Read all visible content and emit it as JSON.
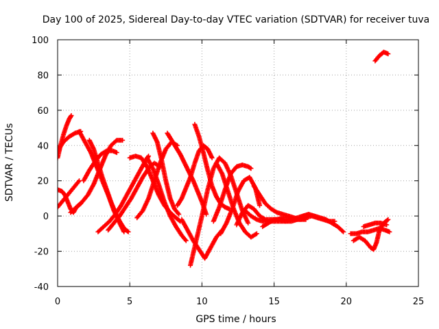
{
  "chart_data": {
    "type": "scatter",
    "title": "Day 100 of 2025, Sidereal Day-to-day VTEC variation (SDTVAR) for receiver tuva",
    "xlabel": "GPS time / hours",
    "ylabel": "SDTVAR / TECUs",
    "xlim": [
      0,
      25
    ],
    "ylim": [
      -40,
      100
    ],
    "xticks": [
      0,
      5,
      10,
      15,
      20,
      25
    ],
    "yticks": [
      -40,
      -20,
      0,
      20,
      40,
      60,
      80,
      100
    ],
    "grid": true,
    "marker": "+",
    "color": "#ff0000",
    "series": [
      {
        "name": "track-1",
        "x": [
          0.0,
          0.2,
          0.4,
          0.6,
          0.8,
          0.95
        ],
        "y": [
          33,
          40,
          46,
          51,
          55,
          57
        ]
      },
      {
        "name": "track-2",
        "x": [
          0.0,
          0.4,
          0.8,
          1.2,
          1.6
        ],
        "y": [
          37,
          42,
          45,
          47,
          48
        ]
      },
      {
        "name": "track-3",
        "x": [
          0.0,
          0.3,
          0.6,
          0.9,
          1.2,
          1.5
        ],
        "y": [
          5,
          8,
          11,
          14,
          17,
          20
        ]
      },
      {
        "name": "track-4",
        "x": [
          0.0,
          0.3,
          0.5,
          0.7,
          0.9,
          1.1,
          1.3,
          1.6
        ],
        "y": [
          15,
          14,
          12,
          8,
          4,
          2,
          5,
          7
        ]
      },
      {
        "name": "track-5",
        "x": [
          0.9,
          1.3,
          1.7,
          2.1,
          2.5,
          2.9,
          3.3,
          3.7,
          4.1,
          4.5
        ],
        "y": [
          2,
          5,
          8,
          12,
          18,
          26,
          34,
          40,
          43,
          43
        ]
      },
      {
        "name": "track-6",
        "x": [
          1.5,
          1.9,
          2.3,
          2.7,
          3.1,
          3.5,
          3.9,
          4.3,
          4.6
        ],
        "y": [
          48,
          42,
          36,
          28,
          20,
          12,
          3,
          -4,
          -9
        ]
      },
      {
        "name": "track-7",
        "x": [
          1.8,
          2.2,
          2.6,
          3.0,
          3.4,
          3.8,
          4.1
        ],
        "y": [
          20,
          26,
          31,
          35,
          37,
          37,
          36
        ]
      },
      {
        "name": "track-8",
        "x": [
          2.2,
          2.5,
          2.8,
          3.1,
          3.4,
          3.7,
          4.0,
          4.3,
          4.6,
          4.9
        ],
        "y": [
          43,
          38,
          30,
          22,
          15,
          8,
          2,
          -3,
          -7,
          -9
        ]
      },
      {
        "name": "track-9",
        "x": [
          2.8,
          3.2,
          3.6,
          4.0,
          4.4,
          4.8,
          5.2,
          5.6,
          6.0,
          6.3
        ],
        "y": [
          -9,
          -6,
          -3,
          1,
          6,
          12,
          18,
          24,
          30,
          34
        ]
      },
      {
        "name": "track-10",
        "x": [
          3.5,
          3.9,
          4.3,
          4.7,
          5.1,
          5.5,
          5.9,
          6.3,
          6.7,
          7.1
        ],
        "y": [
          -8,
          -4,
          0,
          5,
          10,
          16,
          22,
          27,
          30,
          28
        ]
      },
      {
        "name": "track-11",
        "x": [
          5.0,
          5.4,
          5.8,
          6.2,
          6.6,
          7.0,
          7.4,
          7.8,
          8.2,
          8.5
        ],
        "y": [
          33,
          34,
          33,
          28,
          20,
          12,
          6,
          2,
          -1,
          -3
        ]
      },
      {
        "name": "track-12",
        "x": [
          6.2,
          6.6,
          7.0,
          7.4,
          7.8,
          8.2,
          8.6,
          8.9
        ],
        "y": [
          33,
          27,
          18,
          8,
          0,
          -6,
          -11,
          -14
        ]
      },
      {
        "name": "track-13",
        "x": [
          5.5,
          5.9,
          6.3,
          6.7,
          7.1,
          7.5,
          7.9,
          8.3
        ],
        "y": [
          -1,
          3,
          10,
          20,
          30,
          38,
          42,
          40
        ]
      },
      {
        "name": "track-14",
        "x": [
          6.6,
          6.9,
          7.2,
          7.5,
          7.8,
          8.1,
          8.4
        ],
        "y": [
          47,
          42,
          32,
          20,
          10,
          4,
          1
        ]
      },
      {
        "name": "track-15",
        "x": [
          7.6,
          7.9,
          8.2,
          8.5,
          8.8,
          9.1,
          9.4,
          9.7,
          10.0,
          10.3
        ],
        "y": [
          47,
          43,
          39,
          35,
          30,
          25,
          20,
          14,
          8,
          1
        ]
      },
      {
        "name": "track-16",
        "x": [
          8.3,
          8.6,
          8.9,
          9.2,
          9.5,
          9.8,
          10.1,
          10.4,
          10.7
        ],
        "y": [
          6,
          10,
          16,
          22,
          30,
          37,
          40,
          38,
          33
        ]
      },
      {
        "name": "track-17",
        "x": [
          9.5,
          9.8,
          10.1,
          10.4,
          10.7,
          11.0,
          11.3,
          11.6,
          11.9
        ],
        "y": [
          52,
          45,
          36,
          26,
          17,
          11,
          7,
          5,
          4
        ]
      },
      {
        "name": "track-18",
        "x": [
          8.6,
          9.0,
          9.4,
          9.8,
          10.2,
          10.6,
          11.0,
          11.4
        ],
        "y": [
          -2,
          -8,
          -14,
          -19,
          -24,
          -18,
          -12,
          -8
        ]
      },
      {
        "name": "track-19",
        "x": [
          9.2,
          9.6,
          10.0,
          10.4,
          10.8,
          11.2,
          11.6,
          12.0,
          12.4,
          12.8,
          13.2
        ],
        "y": [
          -28,
          -14,
          0,
          15,
          27,
          33,
          30,
          23,
          13,
          3,
          -4
        ]
      },
      {
        "name": "track-20",
        "x": [
          10.8,
          11.2,
          11.6,
          12.0,
          12.4,
          12.8,
          13.2,
          13.4
        ],
        "y": [
          -3,
          5,
          15,
          24,
          28,
          29,
          28,
          27
        ]
      },
      {
        "name": "track-21",
        "x": [
          11.3,
          11.7,
          12.1,
          12.5,
          12.9,
          13.3,
          13.7,
          14.0
        ],
        "y": [
          -10,
          -4,
          4,
          14,
          20,
          22,
          16,
          6
        ]
      },
      {
        "name": "track-22",
        "x": [
          11.0,
          11.4,
          11.8,
          12.2,
          12.6,
          13.0,
          13.4,
          13.8
        ],
        "y": [
          30,
          24,
          14,
          4,
          -4,
          -9,
          -12,
          -10
        ]
      },
      {
        "name": "track-23",
        "x": [
          12.4,
          12.8,
          13.2,
          13.6,
          14.0,
          14.4,
          14.8,
          15.2,
          15.6,
          16.0,
          16.4,
          16.8,
          17.2,
          17.6,
          18.0,
          18.4,
          18.8,
          19.2
        ],
        "y": [
          -5,
          2,
          6,
          4,
          0,
          -2,
          -2,
          -2,
          -1,
          -1,
          -2,
          -2,
          -1,
          0,
          -1,
          -2,
          -3,
          -3
        ]
      },
      {
        "name": "track-24",
        "x": [
          13.0,
          13.4,
          13.8,
          14.2,
          14.6,
          15.0,
          15.4,
          15.8,
          16.2,
          16.6,
          17.0,
          17.4,
          17.8,
          18.2,
          18.6,
          19.0,
          19.4,
          19.8
        ],
        "y": [
          3,
          0,
          -2,
          -3,
          -3,
          -3,
          -3,
          -3,
          -2,
          -1,
          0,
          1,
          0,
          -1,
          -2,
          -4,
          -6,
          -9
        ]
      },
      {
        "name": "track-25",
        "x": [
          13.6,
          14.0,
          14.4,
          14.8,
          15.2,
          15.6,
          16.0,
          16.4,
          16.8,
          17.2
        ],
        "y": [
          17,
          12,
          7,
          4,
          2,
          1,
          0,
          -1,
          -2,
          -2
        ]
      },
      {
        "name": "track-26",
        "x": [
          14.2,
          14.6,
          15.0,
          15.4,
          15.8,
          16.2,
          16.6,
          17.0,
          17.4
        ],
        "y": [
          -6,
          -4,
          -2,
          -2,
          -3,
          -3,
          -2,
          0,
          1
        ]
      },
      {
        "name": "track-27",
        "x": [
          20.3,
          20.7,
          21.1,
          21.5,
          21.9,
          22.3,
          22.7,
          23.0
        ],
        "y": [
          -10,
          -10,
          -9,
          -9,
          -8,
          -7,
          -8,
          -9
        ]
      },
      {
        "name": "track-28",
        "x": [
          20.5,
          20.9,
          21.3,
          21.7,
          21.9,
          22.1,
          22.3,
          22.6,
          22.9
        ],
        "y": [
          -14,
          -12,
          -14,
          -18,
          -19,
          -15,
          -8,
          -4,
          -2
        ]
      },
      {
        "name": "track-29",
        "x": [
          21.2,
          21.6,
          22.0,
          22.4,
          22.8
        ],
        "y": [
          -6,
          -5,
          -4,
          -4,
          -5
        ]
      },
      {
        "name": "track-30",
        "x": [
          22.0,
          22.3,
          22.6,
          22.9
        ],
        "y": [
          88,
          91,
          93,
          92
        ]
      }
    ]
  }
}
